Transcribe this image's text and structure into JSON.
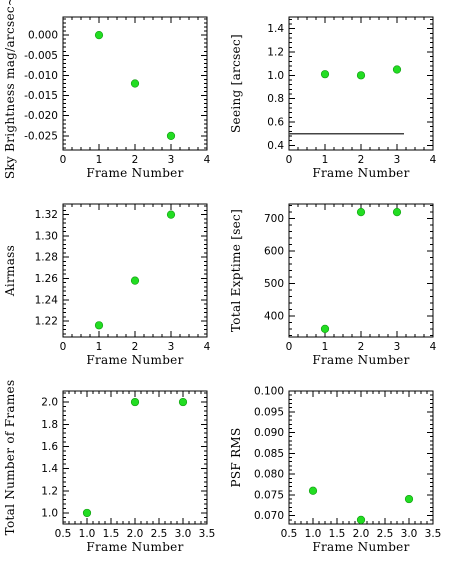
{
  "chart_data": [
    {
      "type": "scatter",
      "xlabel": "Frame Number",
      "ylabel": "Sky Brightness mag/arcsec~2",
      "xlim": [
        0,
        4
      ],
      "ylim": [
        -0.0285,
        0.0045
      ],
      "xticks": [
        0,
        1,
        2,
        3,
        4
      ],
      "yticks": [
        0.0,
        -0.005,
        -0.01,
        -0.015,
        -0.02,
        -0.025
      ],
      "xtick_labels": [
        "0",
        "1",
        "2",
        "3",
        "4"
      ],
      "ytick_labels": [
        "0.000",
        "-0.005",
        "-0.010",
        "-0.015",
        "-0.020",
        "-0.025"
      ],
      "x": [
        1,
        2,
        3
      ],
      "y": [
        0.0,
        -0.012,
        -0.025
      ],
      "marker_color": "#22dd22"
    },
    {
      "type": "scatter",
      "xlabel": "Frame Number",
      "ylabel": "Seeing [arcsec]",
      "xlim": [
        0,
        4
      ],
      "ylim": [
        0.36,
        1.5
      ],
      "xticks": [
        0,
        1,
        2,
        3,
        4
      ],
      "yticks": [
        0.4,
        0.6,
        0.8,
        1.0,
        1.2,
        1.4
      ],
      "xtick_labels": [
        "0",
        "1",
        "2",
        "3",
        "4"
      ],
      "ytick_labels": [
        "0.4",
        "0.6",
        "0.8",
        "1.0",
        "1.2",
        "1.4"
      ],
      "x": [
        1,
        2,
        3
      ],
      "y": [
        1.01,
        1.0,
        1.05
      ],
      "reference_line": {
        "y": 0.5,
        "x_range": [
          0,
          3.2
        ],
        "color": "#444444"
      },
      "marker_color": "#22dd22"
    },
    {
      "type": "scatter",
      "xlabel": "Frame Number",
      "ylabel": "Airmass",
      "xlim": [
        0,
        4
      ],
      "ylim": [
        1.205,
        1.33
      ],
      "xticks": [
        0,
        1,
        2,
        3,
        4
      ],
      "yticks": [
        1.22,
        1.24,
        1.26,
        1.28,
        1.3,
        1.32
      ],
      "xtick_labels": [
        "0",
        "1",
        "2",
        "3",
        "4"
      ],
      "ytick_labels": [
        "1.22",
        "1.24",
        "1.26",
        "1.28",
        "1.30",
        "1.32"
      ],
      "x": [
        1,
        2,
        3
      ],
      "y": [
        1.216,
        1.258,
        1.32
      ],
      "marker_color": "#22dd22"
    },
    {
      "type": "scatter",
      "xlabel": "Frame Number",
      "ylabel": "Total Exptime [sec]",
      "xlim": [
        0,
        4
      ],
      "ylim": [
        335,
        745
      ],
      "xticks": [
        0,
        1,
        2,
        3,
        4
      ],
      "yticks": [
        400,
        500,
        600,
        700
      ],
      "xtick_labels": [
        "0",
        "1",
        "2",
        "3",
        "4"
      ],
      "ytick_labels": [
        "400",
        "500",
        "600",
        "700"
      ],
      "x": [
        1,
        2,
        3
      ],
      "y": [
        360,
        720,
        720
      ],
      "marker_color": "#22dd22"
    },
    {
      "type": "scatter",
      "xlabel": "Frame Number",
      "ylabel": "Total Number of Frames",
      "xlim": [
        0.5,
        3.5
      ],
      "ylim": [
        0.9,
        2.1
      ],
      "xticks": [
        0.5,
        1.0,
        1.5,
        2.0,
        2.5,
        3.0,
        3.5
      ],
      "yticks": [
        1.0,
        1.2,
        1.4,
        1.6,
        1.8,
        2.0
      ],
      "xtick_labels": [
        "0.5",
        "1.0",
        "1.5",
        "2.0",
        "2.5",
        "3.0",
        "3.5"
      ],
      "ytick_labels": [
        "1.0",
        "1.2",
        "1.4",
        "1.6",
        "1.8",
        "2.0"
      ],
      "x": [
        1,
        2,
        3
      ],
      "y": [
        1.0,
        2.0,
        2.0
      ],
      "marker_color": "#22dd22"
    },
    {
      "type": "scatter",
      "xlabel": "Frame Number",
      "ylabel": "PSF RMS",
      "xlim": [
        0.5,
        3.5
      ],
      "ylim": [
        0.068,
        0.1
      ],
      "xticks": [
        0.5,
        1.0,
        1.5,
        2.0,
        2.5,
        3.0,
        3.5
      ],
      "yticks": [
        0.07,
        0.075,
        0.08,
        0.085,
        0.09,
        0.095,
        0.1
      ],
      "xtick_labels": [
        "0.5",
        "1.0",
        "1.5",
        "2.0",
        "2.5",
        "3.0",
        "3.5"
      ],
      "ytick_labels": [
        "0.070",
        "0.075",
        "0.080",
        "0.085",
        "0.090",
        "0.095",
        "0.100"
      ],
      "x": [
        1,
        2,
        3
      ],
      "y": [
        0.076,
        0.069,
        0.074
      ],
      "marker_color": "#22dd22"
    }
  ]
}
